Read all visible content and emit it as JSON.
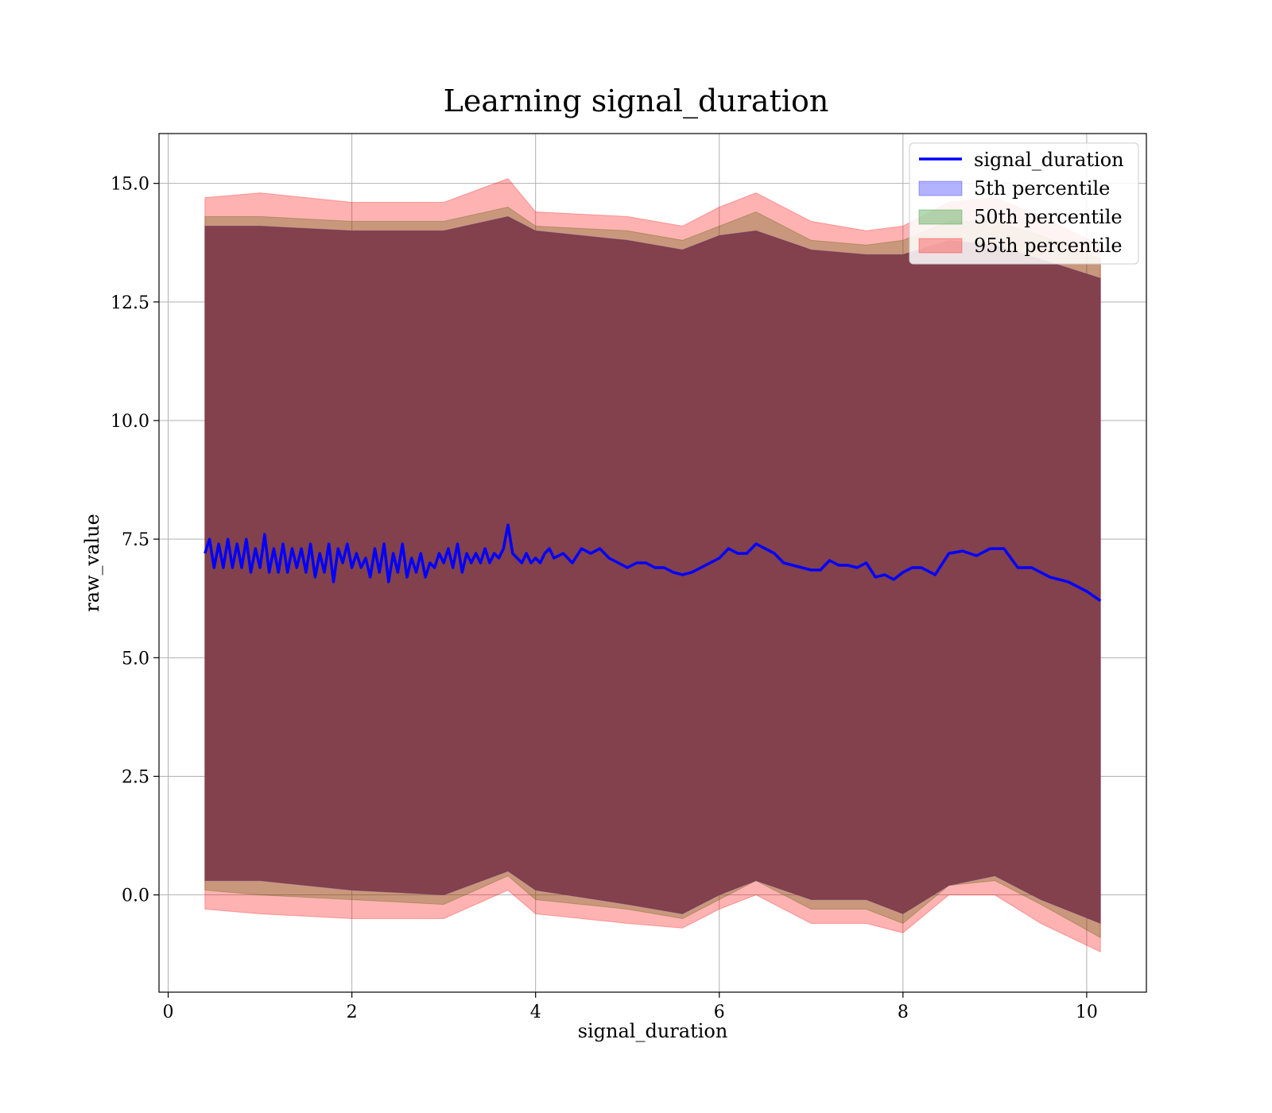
{
  "chart_data": {
    "type": "line",
    "title": "Learning signal_duration",
    "xlabel": "signal_duration",
    "ylabel": "raw_value",
    "xlim": [
      -0.1,
      10.65
    ],
    "ylim": [
      -2.05,
      16.05
    ],
    "xticks": [
      0,
      2,
      4,
      6,
      8,
      10
    ],
    "yticks": [
      0.0,
      2.5,
      5.0,
      7.5,
      10.0,
      12.5,
      15.0
    ],
    "xtick_labels": [
      "0",
      "2",
      "4",
      "6",
      "8",
      "10"
    ],
    "ytick_labels": [
      "0.0",
      "2.5",
      "5.0",
      "7.5",
      "10.0",
      "12.5",
      "15.0"
    ],
    "grid": true,
    "legend": "top-right",
    "legend_entries": [
      "signal_duration",
      "5th percentile",
      "50th percentile",
      "95th percentile"
    ],
    "colors": {
      "line": "#0000ff",
      "p5": "#0000ff",
      "p50": "#008000",
      "p95": "#ff0000",
      "overlap": "#a07078"
    },
    "series": [
      {
        "name": "signal_duration",
        "kind": "line",
        "x": [
          0.4,
          0.45,
          0.5,
          0.55,
          0.6,
          0.65,
          0.7,
          0.75,
          0.8,
          0.85,
          0.9,
          0.95,
          1.0,
          1.05,
          1.1,
          1.15,
          1.2,
          1.25,
          1.3,
          1.35,
          1.4,
          1.45,
          1.5,
          1.55,
          1.6,
          1.65,
          1.7,
          1.75,
          1.8,
          1.85,
          1.9,
          1.95,
          2.0,
          2.05,
          2.1,
          2.15,
          2.2,
          2.25,
          2.3,
          2.35,
          2.4,
          2.45,
          2.5,
          2.55,
          2.6,
          2.65,
          2.7,
          2.75,
          2.8,
          2.85,
          2.9,
          2.95,
          3.0,
          3.05,
          3.1,
          3.15,
          3.2,
          3.25,
          3.3,
          3.35,
          3.4,
          3.45,
          3.5,
          3.55,
          3.6,
          3.65,
          3.7,
          3.75,
          3.8,
          3.85,
          3.9,
          3.95,
          4.0,
          4.05,
          4.1,
          4.15,
          4.2,
          4.3,
          4.4,
          4.5,
          4.6,
          4.7,
          4.8,
          4.9,
          5.0,
          5.1,
          5.2,
          5.3,
          5.4,
          5.5,
          5.6,
          5.7,
          5.8,
          5.9,
          6.0,
          6.1,
          6.2,
          6.3,
          6.4,
          6.5,
          6.6,
          6.7,
          6.8,
          6.9,
          7.0,
          7.1,
          7.2,
          7.3,
          7.4,
          7.5,
          7.6,
          7.7,
          7.8,
          7.9,
          8.0,
          8.1,
          8.2,
          8.35,
          8.5,
          8.65,
          8.8,
          8.95,
          9.1,
          9.25,
          9.4,
          9.6,
          9.8,
          10.0,
          10.15
        ],
        "y": [
          7.2,
          7.5,
          6.9,
          7.4,
          6.9,
          7.5,
          6.9,
          7.4,
          6.9,
          7.5,
          6.8,
          7.3,
          6.9,
          7.6,
          6.8,
          7.3,
          6.8,
          7.4,
          6.8,
          7.3,
          6.9,
          7.3,
          6.8,
          7.4,
          6.7,
          7.2,
          6.8,
          7.4,
          6.6,
          7.3,
          7.0,
          7.4,
          6.9,
          7.2,
          6.9,
          7.1,
          6.7,
          7.3,
          6.8,
          7.4,
          6.6,
          7.2,
          6.8,
          7.4,
          6.7,
          7.1,
          6.8,
          7.2,
          6.7,
          7.0,
          6.9,
          7.2,
          7.0,
          7.3,
          6.9,
          7.4,
          6.8,
          7.2,
          7.0,
          7.2,
          7.0,
          7.3,
          7.0,
          7.2,
          7.1,
          7.3,
          7.8,
          7.2,
          7.1,
          7.0,
          7.2,
          7.0,
          7.1,
          7.0,
          7.2,
          7.3,
          7.1,
          7.2,
          7.0,
          7.3,
          7.2,
          7.3,
          7.1,
          7.0,
          6.9,
          7.0,
          7.0,
          6.9,
          6.9,
          6.8,
          6.75,
          6.8,
          6.9,
          7.0,
          7.1,
          7.3,
          7.2,
          7.2,
          7.4,
          7.3,
          7.2,
          7.0,
          6.95,
          6.9,
          6.85,
          6.85,
          7.05,
          6.95,
          6.95,
          6.9,
          7.0,
          6.7,
          6.75,
          6.65,
          6.8,
          6.9,
          6.9,
          6.75,
          7.2,
          7.25,
          7.15,
          7.3,
          7.3,
          6.9,
          6.9,
          6.7,
          6.6,
          6.4,
          6.2
        ]
      },
      {
        "name": "5th percentile",
        "kind": "band",
        "x": [
          0.4,
          1.0,
          2.0,
          3.0,
          3.7,
          4.0,
          5.0,
          5.6,
          6.0,
          6.4,
          7.0,
          7.6,
          8.0,
          8.5,
          9.0,
          9.5,
          10.15
        ],
        "lower": [
          0.3,
          0.3,
          0.1,
          0.0,
          0.5,
          0.1,
          -0.2,
          -0.4,
          0.0,
          0.3,
          -0.1,
          -0.1,
          -0.4,
          0.2,
          0.4,
          -0.1,
          -0.6
        ],
        "upper": [
          14.1,
          14.1,
          14.0,
          14.0,
          14.3,
          14.0,
          13.8,
          13.6,
          13.9,
          14.0,
          13.6,
          13.5,
          13.5,
          13.8,
          13.7,
          13.4,
          13.0
        ]
      },
      {
        "name": "50th percentile",
        "kind": "band",
        "x": [
          0.4,
          1.0,
          2.0,
          3.0,
          3.7,
          4.0,
          5.0,
          5.6,
          6.0,
          6.4,
          7.0,
          7.6,
          8.0,
          8.5,
          9.0,
          9.5,
          10.15
        ],
        "lower": [
          0.1,
          0.0,
          -0.1,
          -0.2,
          0.4,
          -0.1,
          -0.3,
          -0.5,
          -0.1,
          0.3,
          -0.3,
          -0.3,
          -0.6,
          0.2,
          0.3,
          -0.2,
          -0.9
        ],
        "upper": [
          14.3,
          14.3,
          14.2,
          14.2,
          14.5,
          14.1,
          14.0,
          13.8,
          14.1,
          14.4,
          13.8,
          13.7,
          13.8,
          14.2,
          14.2,
          13.9,
          13.4
        ]
      },
      {
        "name": "95th percentile",
        "kind": "band",
        "x": [
          0.4,
          1.0,
          2.0,
          3.0,
          3.7,
          4.0,
          5.0,
          5.6,
          6.0,
          6.4,
          7.0,
          7.6,
          8.0,
          8.5,
          9.0,
          9.5,
          10.15
        ],
        "lower": [
          -0.3,
          -0.4,
          -0.5,
          -0.5,
          0.1,
          -0.4,
          -0.6,
          -0.7,
          -0.3,
          0.0,
          -0.6,
          -0.6,
          -0.8,
          0.0,
          0.0,
          -0.6,
          -1.2
        ],
        "upper": [
          14.7,
          14.8,
          14.6,
          14.6,
          15.1,
          14.4,
          14.3,
          14.1,
          14.5,
          14.8,
          14.2,
          14.0,
          14.1,
          14.6,
          14.7,
          14.3,
          13.7
        ]
      }
    ]
  }
}
